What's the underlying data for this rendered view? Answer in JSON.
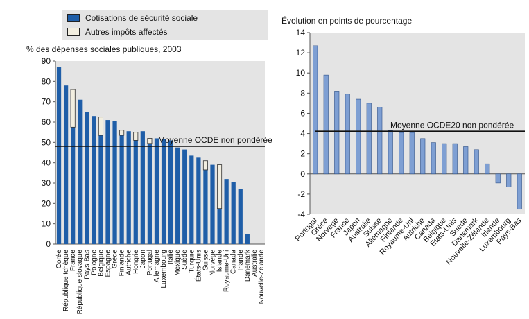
{
  "legend": {
    "cotisations": "Cotisations de sécurité sociale",
    "autres": "Autres impôts affectés"
  },
  "colors": {
    "left_bar": "#1f5ea8",
    "right_bar": "#7e9fd3",
    "other_fill": "#f2eee0",
    "panel_bg": "#e4e4e4",
    "avg_line": "#111111"
  },
  "chart_data": [
    {
      "type": "bar",
      "title": "% des dépenses sociales publiques, 2003",
      "ylim": [
        0,
        90
      ],
      "yticks": [
        0,
        10,
        20,
        30,
        40,
        50,
        60,
        70,
        80,
        90
      ],
      "grid": false,
      "average": {
        "label": "Moyenne OCDE non pondérée",
        "value": 48
      },
      "categories": [
        "Corée",
        "République tchèque",
        "France",
        "République slovaque",
        "Pays-Bas",
        "Pologne",
        "Belgique",
        "Espagne",
        "Grèce",
        "Finlande",
        "Autriche",
        "Hongrie",
        "Japon",
        "Portugal",
        "Allemagne",
        "Luxembourg",
        "Italie",
        "Mexique",
        "Suède",
        "Turquie",
        "États-Unis",
        "Suisse",
        "Norvège",
        "Islande",
        "Royaume-Uni",
        "Canada",
        "Irlande",
        "Danemark",
        "Australie",
        "Nouvelle-Zélande"
      ],
      "series": [
        {
          "name": "Cotisations de sécurité sociale",
          "values": [
            87,
            78,
            57.5,
            71,
            65,
            63,
            53.5,
            61,
            60.5,
            53.5,
            55.5,
            51,
            55.5,
            49.5,
            52,
            51.5,
            51,
            47.5,
            46.5,
            43.5,
            42.5,
            36.5,
            39,
            17.5,
            32,
            30.5,
            27,
            5,
            0,
            0
          ]
        },
        {
          "name": "Autres impôts affectés",
          "values": [
            0,
            0,
            18.5,
            0,
            0,
            0,
            9,
            0,
            0,
            2.5,
            0,
            4,
            0,
            2.5,
            0,
            0,
            0,
            0,
            0,
            0,
            0,
            4.5,
            0,
            21.5,
            0,
            0,
            0,
            0,
            0,
            0
          ]
        }
      ]
    },
    {
      "type": "bar",
      "title": "Évolution en points de pourcentage",
      "ylim": [
        -4,
        14
      ],
      "yticks": [
        -4,
        -2,
        0,
        2,
        4,
        6,
        8,
        10,
        12,
        14
      ],
      "grid": false,
      "average": {
        "label": "Moyenne OCDE20 non pondérée",
        "value": 4.2
      },
      "categories": [
        "Portugal",
        "Grèce",
        "Norvège",
        "France",
        "Japon",
        "Australie",
        "Suisse",
        "Allemagne",
        "Finlande",
        "Royaume-Uni",
        "Autriche",
        "Canada",
        "Belgique",
        "États-Unis",
        "Suède",
        "Danemark",
        "Nouvelle-Zélande",
        "Irlande",
        "Luxembourg",
        "Pays-Bas"
      ],
      "values": [
        12.7,
        9.8,
        8.2,
        7.9,
        7.4,
        7.0,
        6.6,
        4.3,
        4.1,
        4.1,
        3.5,
        3.1,
        3.0,
        3.0,
        2.7,
        2.4,
        1.0,
        -0.9,
        -1.3,
        -3.5
      ]
    }
  ]
}
